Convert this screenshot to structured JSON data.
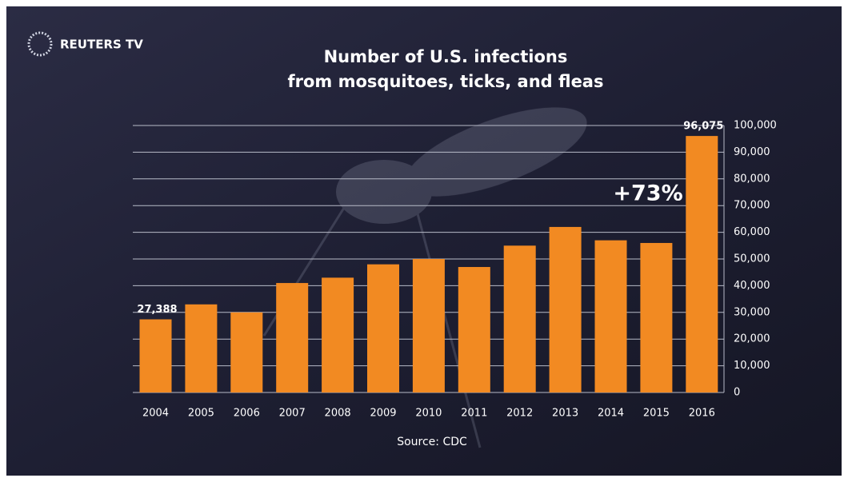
{
  "chart_data": {
    "type": "bar",
    "brand": "REUTERS TV",
    "title": [
      "Number of U.S. infections",
      "from mosquitoes, ticks, and fleas"
    ],
    "categories": [
      "2004",
      "2005",
      "2006",
      "2007",
      "2008",
      "2009",
      "2010",
      "2011",
      "2012",
      "2013",
      "2014",
      "2015",
      "2016"
    ],
    "values": [
      27388,
      33000,
      30000,
      41000,
      43000,
      48000,
      50000,
      47000,
      55000,
      62000,
      57000,
      56000,
      96075
    ],
    "value_labels": [
      "27,388",
      null,
      null,
      null,
      null,
      null,
      null,
      null,
      null,
      null,
      null,
      null,
      "96,075"
    ],
    "color": "#f28a22",
    "ylim": [
      0,
      100000
    ],
    "yticks": [
      0,
      {
        "value": 10000,
        "label": "10,000"
      },
      {
        "value": 20000,
        "label": "20,000"
      },
      {
        "value": 30000,
        "label": "30,000"
      },
      {
        "value": 40000,
        "label": "40,000"
      },
      {
        "value": 50000,
        "label": "50,000"
      },
      {
        "value": 60000,
        "label": "60,000"
      },
      {
        "value": 70000,
        "label": "70,000"
      },
      {
        "value": 80000,
        "label": "80,000"
      },
      {
        "value": 90000,
        "label": "90,000"
      },
      {
        "value": 100000,
        "label": "100,000"
      }
    ],
    "grid": true,
    "annotation": "+73%",
    "source": "Source: CDC"
  }
}
